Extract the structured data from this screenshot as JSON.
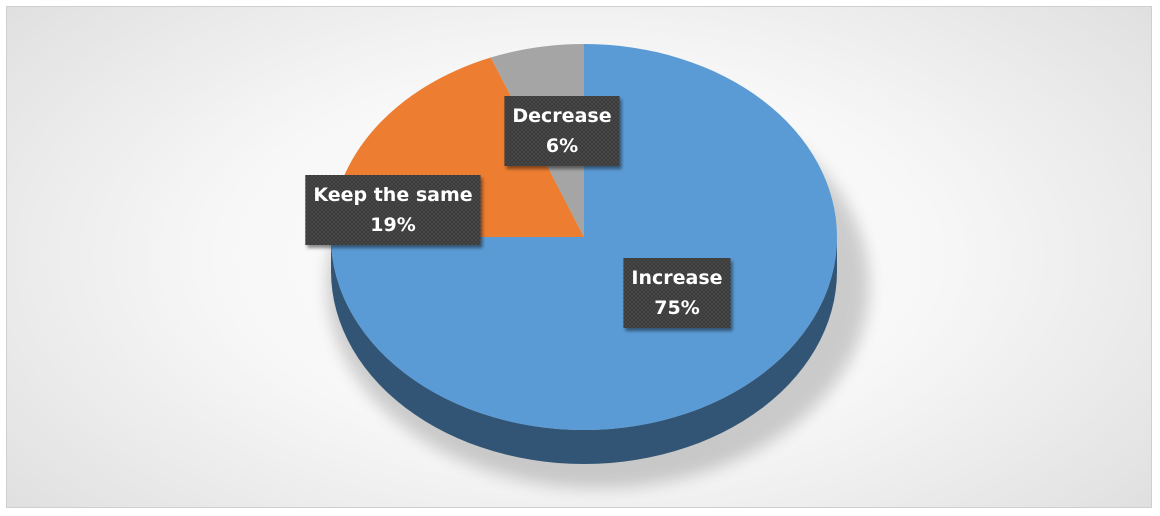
{
  "chart_data": {
    "type": "pie",
    "title": "",
    "categories": [
      "Increase",
      "Keep the same",
      "Decrease"
    ],
    "values": [
      75,
      19,
      6
    ],
    "data_labels": [
      "75%",
      "19%",
      "6%"
    ],
    "colors": [
      "#5B9BD5",
      "#ED7D31",
      "#A5A5A5"
    ],
    "legend": "none",
    "style": "3d"
  }
}
